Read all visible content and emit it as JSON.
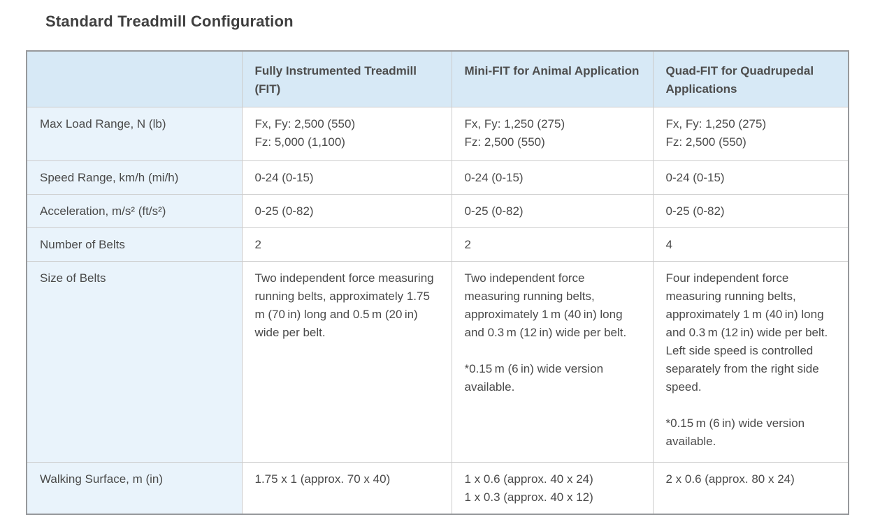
{
  "page": {
    "title": "Standard Treadmill Configuration"
  },
  "colors": {
    "header_bg": "#d7e9f6",
    "label_column_bg": "#e9f3fb",
    "cell_bg": "#ffffff",
    "outer_border": "#97999c",
    "inner_border": "#cccccc",
    "text": "#4a4a4a",
    "title_text": "#3f3f3f"
  },
  "table": {
    "columns": [
      "",
      "Fully Instrumented Treadmill (FIT)",
      "Mini-FIT for Animal Application",
      "Quad-FIT for Quadrupedal Applications"
    ],
    "rows": [
      {
        "label": "Max Load Range, N (lb)",
        "cells": [
          "Fx, Fy: 2,500 (550)\nFz: 5,000 (1,100)",
          "Fx, Fy: 1,250 (275)\nFz: 2,500 (550)",
          "Fx, Fy: 1,250 (275)\nFz: 2,500 (550)"
        ]
      },
      {
        "label": "Speed Range, km/h (mi/h)",
        "cells": [
          "0-24 (0-15)",
          "0-24 (0-15)",
          "0-24 (0-15)"
        ]
      },
      {
        "label": "Acceleration, m/s² (ft/s²)",
        "cells": [
          "0-25 (0-82)",
          "0-25 (0-82)",
          "0-25 (0-82)"
        ]
      },
      {
        "label": "Number of Belts",
        "cells": [
          "2",
          "2",
          "4"
        ]
      },
      {
        "label": "Size of Belts",
        "cells": [
          "Two independent force measuring running belts, approximately 1.75 m (70 in) long and 0.5 m (20 in) wide per belt.",
          "Two independent force measuring running belts, approximately 1 m (40 in) long and 0.3 m (12 in) wide per belt.\n\n*0.15 m (6 in) wide version available.",
          "Four independent force measuring running belts, approximately 1 m (40 in) long and 0.3 m (12 in) wide per belt. Left side speed is controlled separately from the right side speed.\n\n*0.15 m (6 in) wide version available."
        ]
      },
      {
        "label": "Walking Surface, m (in)",
        "cells": [
          "1.75 x 1 (approx. 70 x 40)",
          "1 x 0.6 (approx. 40 x 24)\n1 x 0.3 (approx. 40 x 12)",
          "2 x 0.6 (approx. 80 x 24)"
        ]
      }
    ]
  }
}
